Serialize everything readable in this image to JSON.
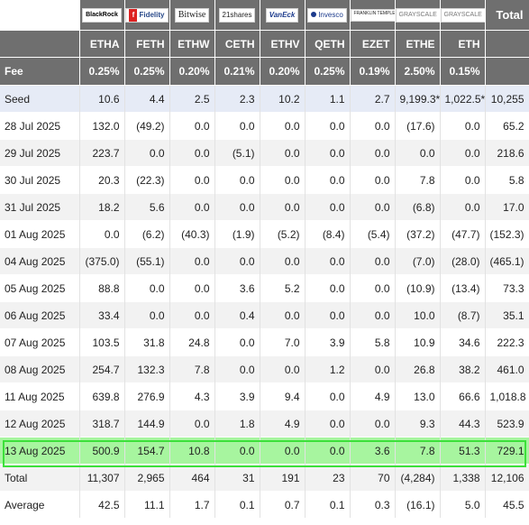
{
  "logos": [
    "BlackRock",
    "Fidelity",
    "Bitwise",
    "21shares",
    "VanEck",
    "Invesco",
    "FRANKLIN TEMPLETON",
    "GRAYSCALE",
    "GRAYSCALE"
  ],
  "total_header": "Total",
  "tickers": [
    "ETHA",
    "FETH",
    "ETHW",
    "CETH",
    "ETHV",
    "QETH",
    "EZET",
    "ETHE",
    "ETH"
  ],
  "fee_label": "Fee",
  "fees": [
    "0.25%",
    "0.25%",
    "0.20%",
    "0.21%",
    "0.20%",
    "0.25%",
    "0.19%",
    "2.50%",
    "0.15%"
  ],
  "rows": [
    {
      "label": "Seed",
      "values": [
        "10.6",
        "4.4",
        "2.5",
        "2.3",
        "10.2",
        "1.1",
        "2.7",
        "9,199.3*",
        "1,022.5*",
        "10,255"
      ]
    },
    {
      "label": "28 Jul 2025",
      "values": [
        "132.0",
        "(49.2)",
        "0.0",
        "0.0",
        "0.0",
        "0.0",
        "0.0",
        "(17.6)",
        "0.0",
        "65.2"
      ]
    },
    {
      "label": "29 Jul 2025",
      "values": [
        "223.7",
        "0.0",
        "0.0",
        "(5.1)",
        "0.0",
        "0.0",
        "0.0",
        "0.0",
        "0.0",
        "218.6"
      ]
    },
    {
      "label": "30 Jul 2025",
      "values": [
        "20.3",
        "(22.3)",
        "0.0",
        "0.0",
        "0.0",
        "0.0",
        "0.0",
        "7.8",
        "0.0",
        "5.8"
      ]
    },
    {
      "label": "31 Jul 2025",
      "values": [
        "18.2",
        "5.6",
        "0.0",
        "0.0",
        "0.0",
        "0.0",
        "0.0",
        "(6.8)",
        "0.0",
        "17.0"
      ]
    },
    {
      "label": "01 Aug 2025",
      "values": [
        "0.0",
        "(6.2)",
        "(40.3)",
        "(1.9)",
        "(5.2)",
        "(8.4)",
        "(5.4)",
        "(37.2)",
        "(47.7)",
        "(152.3)"
      ]
    },
    {
      "label": "04 Aug 2025",
      "values": [
        "(375.0)",
        "(55.1)",
        "0.0",
        "0.0",
        "0.0",
        "0.0",
        "0.0",
        "(7.0)",
        "(28.0)",
        "(465.1)"
      ]
    },
    {
      "label": "05 Aug 2025",
      "values": [
        "88.8",
        "0.0",
        "0.0",
        "3.6",
        "5.2",
        "0.0",
        "0.0",
        "(10.9)",
        "(13.4)",
        "73.3"
      ]
    },
    {
      "label": "06 Aug 2025",
      "values": [
        "33.4",
        "0.0",
        "0.0",
        "0.4",
        "0.0",
        "0.0",
        "0.0",
        "10.0",
        "(8.7)",
        "35.1"
      ]
    },
    {
      "label": "07 Aug 2025",
      "values": [
        "103.5",
        "31.8",
        "24.8",
        "0.0",
        "7.0",
        "3.9",
        "5.8",
        "10.9",
        "34.6",
        "222.3"
      ]
    },
    {
      "label": "08 Aug 2025",
      "values": [
        "254.7",
        "132.3",
        "7.8",
        "0.0",
        "0.0",
        "1.2",
        "0.0",
        "26.8",
        "38.2",
        "461.0"
      ]
    },
    {
      "label": "11 Aug 2025",
      "values": [
        "639.8",
        "276.9",
        "4.3",
        "3.9",
        "9.4",
        "0.0",
        "4.9",
        "13.0",
        "66.6",
        "1,018.8"
      ]
    },
    {
      "label": "12 Aug 2025",
      "values": [
        "318.7",
        "144.9",
        "0.0",
        "1.8",
        "4.9",
        "0.0",
        "0.0",
        "9.3",
        "44.3",
        "523.9"
      ]
    },
    {
      "label": "13 Aug 2025",
      "values": [
        "500.9",
        "154.7",
        "10.8",
        "0.0",
        "0.0",
        "0.0",
        "3.6",
        "7.8",
        "51.3",
        "729.1"
      ]
    },
    {
      "label": "Total",
      "values": [
        "11,307",
        "2,965",
        "464",
        "31",
        "191",
        "23",
        "70",
        "(4,284)",
        "1,338",
        "12,106"
      ]
    },
    {
      "label": "Average",
      "values": [
        "42.5",
        "11.1",
        "1.7",
        "0.1",
        "0.7",
        "0.1",
        "0.3",
        "(16.1)",
        "5.0",
        "45.5"
      ]
    }
  ],
  "colors": {
    "header_bg": "#6f6f6f",
    "seed_bg": "#e6ebf6",
    "alt_bg": "#f2f2f2",
    "highlight_bg": "#a7f59f",
    "highlight_border": "#3ce03a",
    "negative": "#e53935"
  }
}
